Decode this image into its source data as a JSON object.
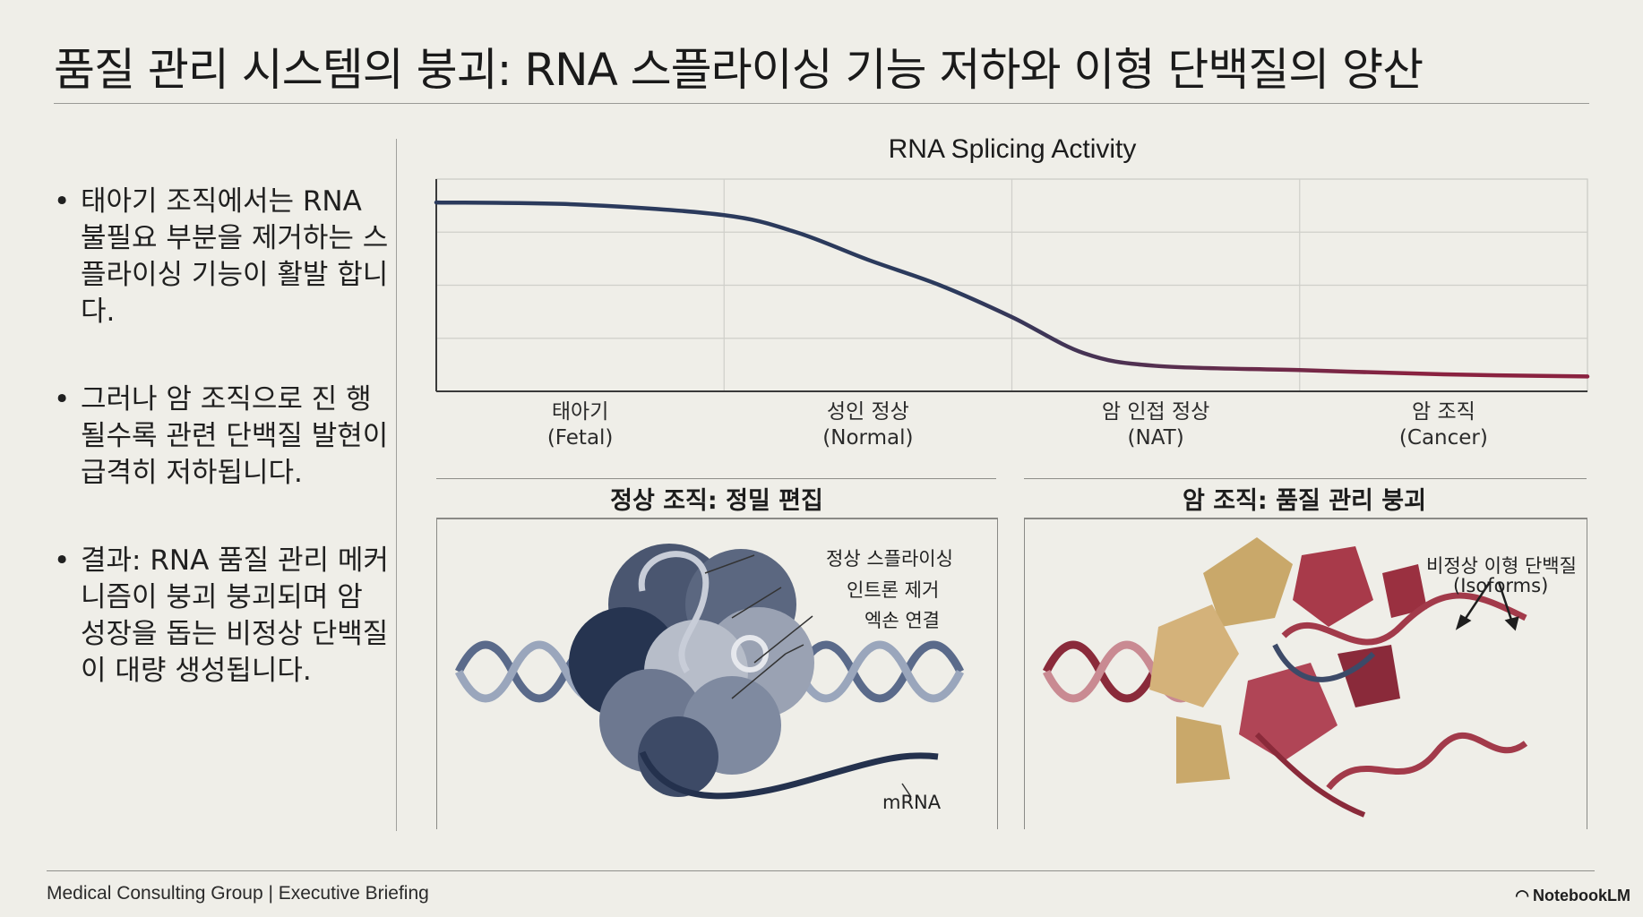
{
  "title": "품질 관리 시스템의 붕괴: RNA 스플라이싱 기능 저하와 이형 단백질의 양산",
  "bullets": [
    "태아기 조직에서는 RNA 불필요 부분을 제거하는 스플라이싱 기능이 활발 합니다.",
    "그러나 암 조직으로 진 행될수록 관련 단백질 발현이 급격히 저하됩니다.",
    "결과: RNA 품질 관리 메커니즘이 붕괴 붕괴되며 암 성장을 돕는 비정상 단백질이 대량 생성됩니다."
  ],
  "chart_data": {
    "type": "line",
    "title": "RNA Splicing Activity",
    "categories": [
      "태아기\n(Fetal)",
      "성인 정상\n(Normal)",
      "암 인접 정상\n(NAT)",
      "암 조직\n(Cancer)"
    ],
    "category_labels": [
      {
        "ko": "태아기",
        "en": "(Fetal)"
      },
      {
        "ko": "성인 정상",
        "en": "(Normal)"
      },
      {
        "ko": "암 인접 정상",
        "en": "(NAT)"
      },
      {
        "ko": "암 조직",
        "en": "(Cancer)"
      }
    ],
    "series": [
      {
        "x": [
          0,
          0.5,
          1,
          1.25,
          1.5,
          1.75,
          2,
          2.25,
          2.5,
          3,
          3.5,
          4
        ],
        "values": [
          0.89,
          0.88,
          0.83,
          0.75,
          0.62,
          0.5,
          0.35,
          0.18,
          0.12,
          0.1,
          0.08,
          0.07
        ],
        "colors": [
          "#2b3a5c",
          "#8a2240"
        ]
      }
    ],
    "xlim": [
      0,
      4
    ],
    "ylim": [
      0,
      1
    ],
    "grid": true,
    "legend": "none"
  },
  "panels": {
    "normal": {
      "title": "정상 조직: 정밀 편집",
      "callouts": [
        "정상 스플라이싱",
        "인트론 제거",
        "엑손 연결",
        "mRNA"
      ]
    },
    "cancer": {
      "title": "암 조직: 품질 관리 붕괴",
      "callouts": [
        "비정상 이형 단백질",
        "(Isoforms)"
      ]
    }
  },
  "footer": {
    "left": "Medical Consulting Group | Executive Briefing",
    "right": "NotebookLM"
  }
}
